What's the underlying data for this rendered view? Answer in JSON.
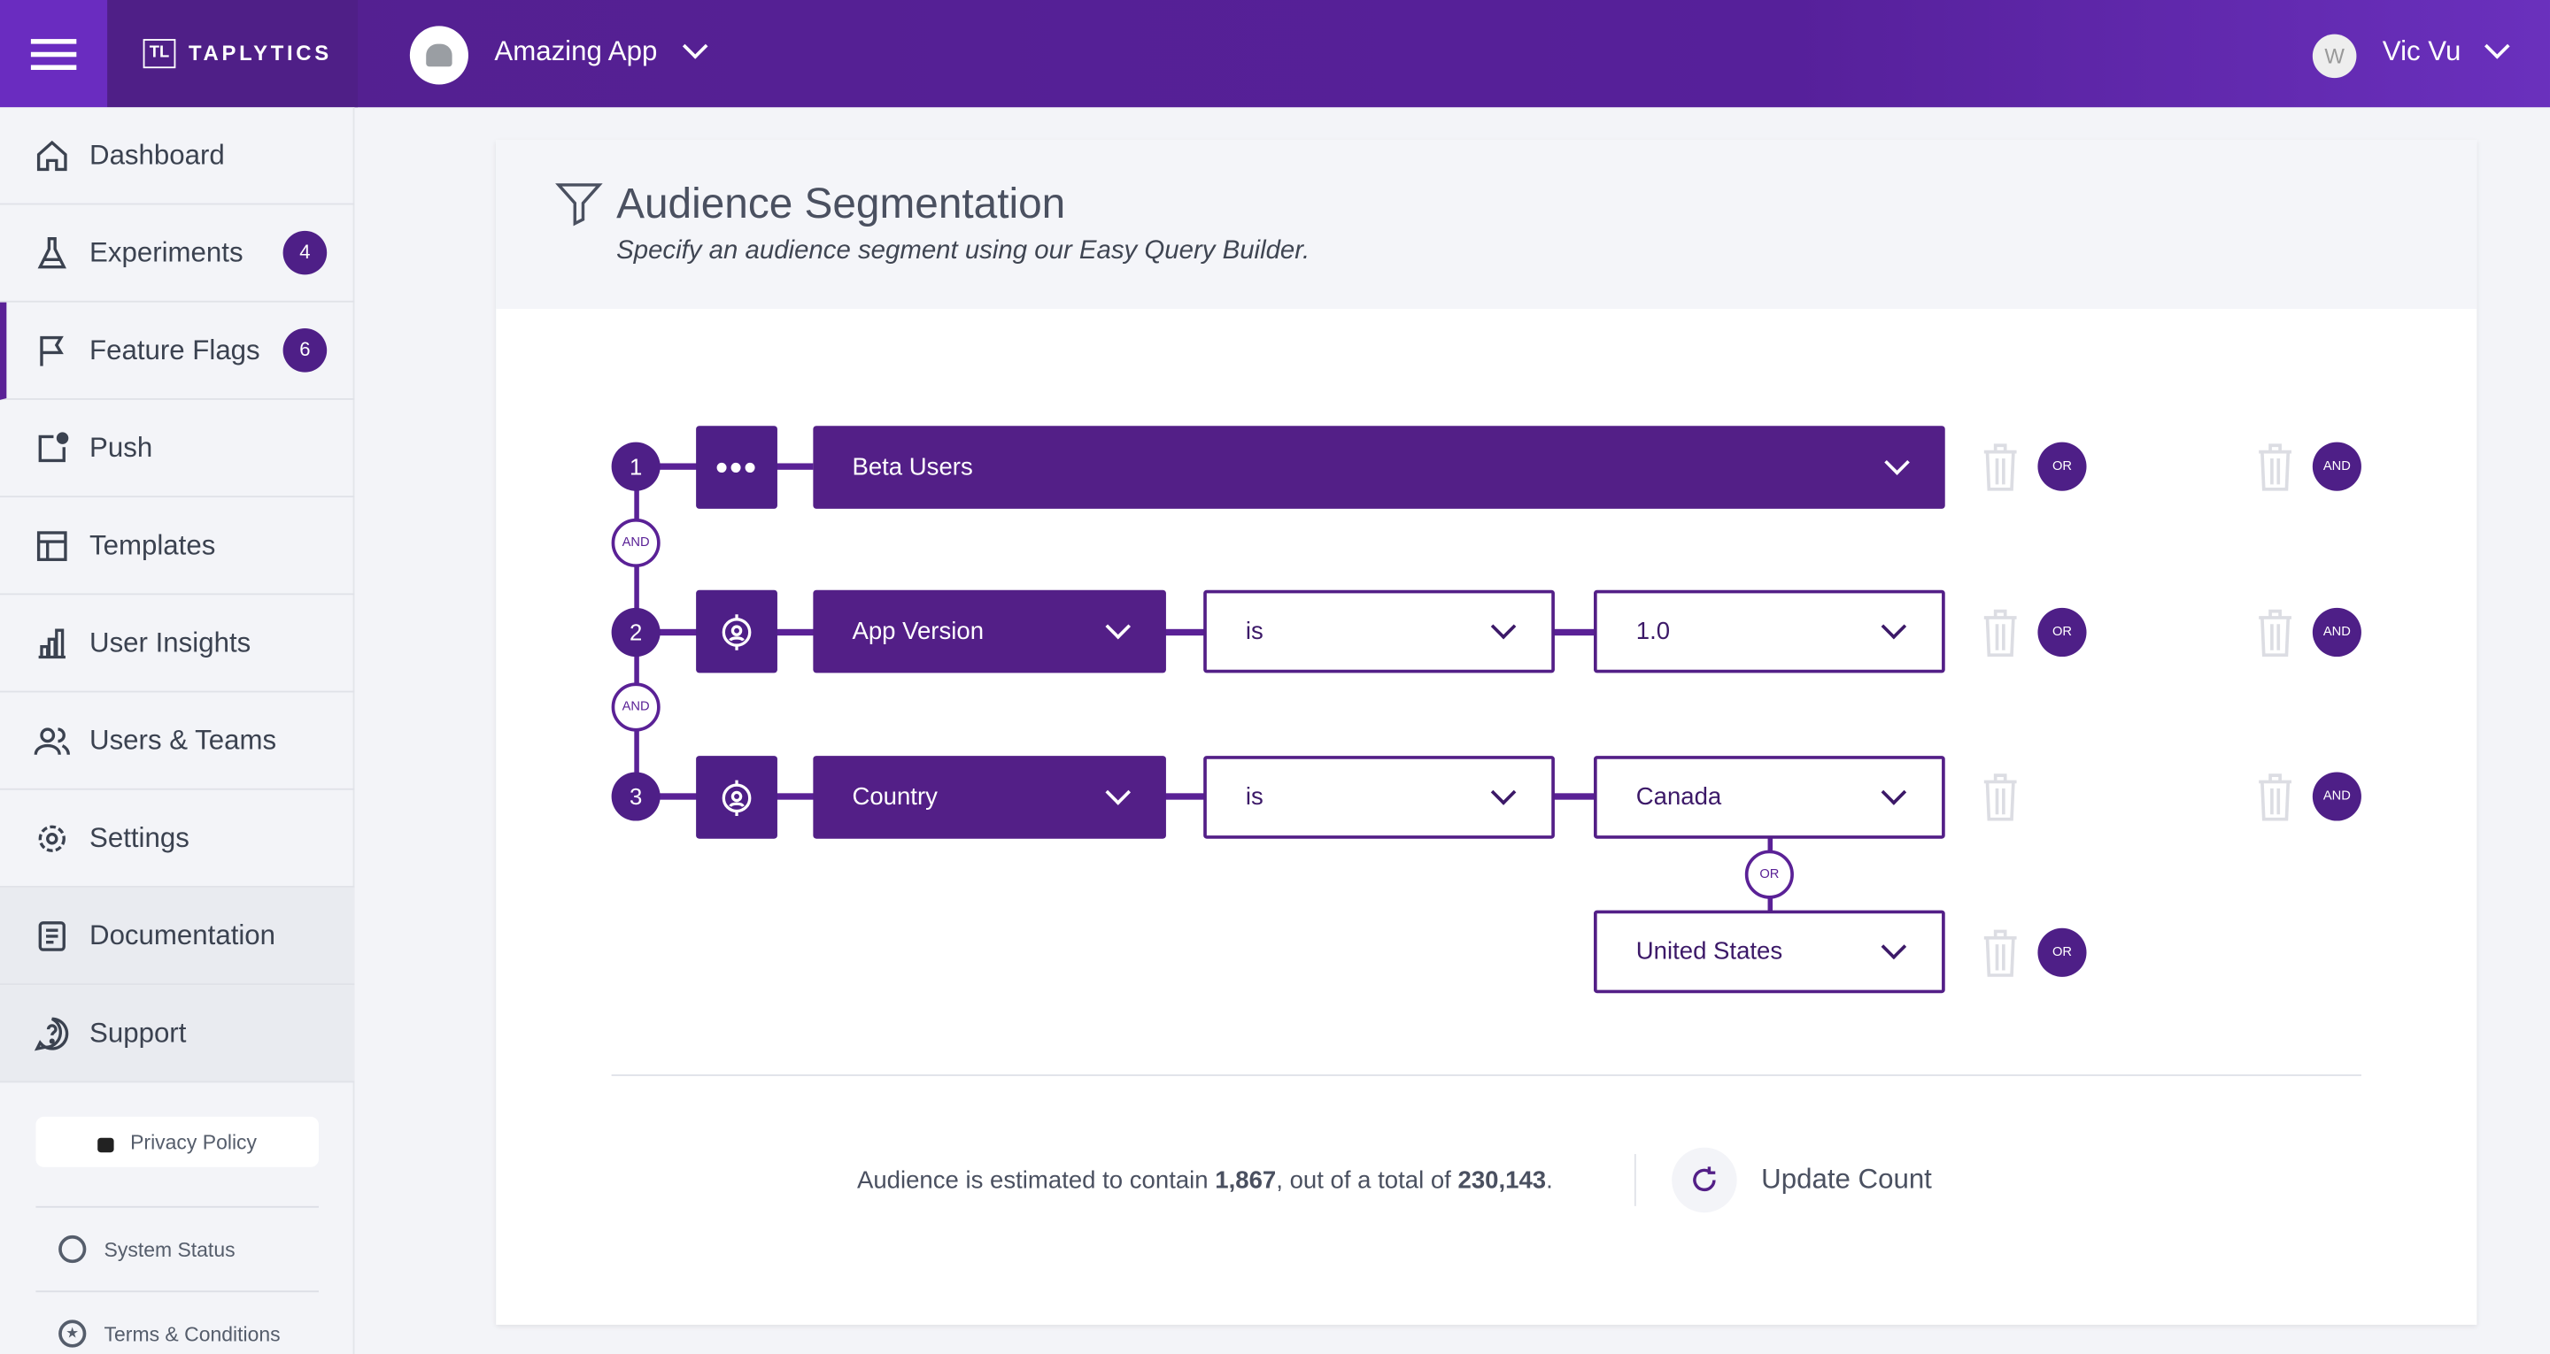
{
  "header": {
    "brand": "TAPLYTICS",
    "brand_mark": "TL",
    "app_name": "Amazing App",
    "user_initial": "W",
    "user_name": "Vic Vu"
  },
  "sidebar": {
    "items": [
      {
        "label": "Dashboard",
        "icon": "home-icon"
      },
      {
        "label": "Experiments",
        "icon": "flask-icon",
        "badge": "4"
      },
      {
        "label": "Feature Flags",
        "icon": "flag-icon",
        "badge": "6",
        "active": true
      },
      {
        "label": "Push",
        "icon": "push-icon"
      },
      {
        "label": "Templates",
        "icon": "template-icon"
      },
      {
        "label": "User Insights",
        "icon": "bar-chart-icon"
      },
      {
        "label": "Users & Teams",
        "icon": "users-icon"
      },
      {
        "label": "Settings",
        "icon": "gear-icon"
      },
      {
        "label": "Documentation",
        "icon": "document-icon"
      },
      {
        "label": "Support",
        "icon": "help-icon"
      }
    ],
    "privacy": "Privacy Policy",
    "system_status": "System Status",
    "terms": "Terms & Conditions"
  },
  "page": {
    "title": "Audience Segmentation",
    "subtitle": "Specify an audience segment using our Easy Query Builder."
  },
  "rules": [
    {
      "num": "1",
      "field": "Beta Users"
    },
    {
      "num": "2",
      "field": "App Version",
      "operator": "is",
      "value": "1.0"
    },
    {
      "num": "3",
      "field": "Country",
      "operator": "is",
      "value": "Canada",
      "or_value": "United States"
    }
  ],
  "labels": {
    "and": "AND",
    "or": "OR"
  },
  "footer": {
    "pre": "Audience is estimated to contain ",
    "count": "1,867",
    "mid": ", out of a total of ",
    "total": "230,143",
    "post": ".",
    "update": "Update Count"
  },
  "colors": {
    "primary": "#531f87",
    "header": "#56209a",
    "sidebar_bg": "#f3f4f8"
  }
}
